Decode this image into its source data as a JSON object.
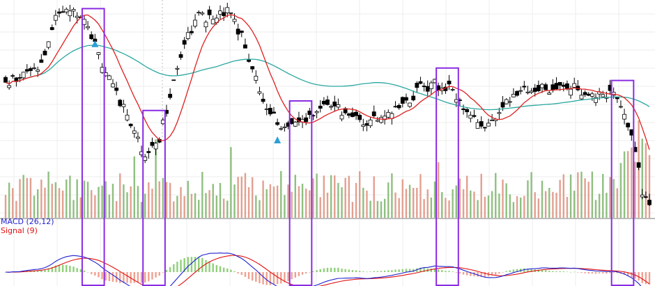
{
  "chart_data": [
    {
      "type": "candlestick",
      "panel": "price",
      "overlays": [
        {
          "kind": "moving-average",
          "color": "#e02020"
        },
        {
          "kind": "moving-average",
          "color": "#2aa7a0"
        }
      ],
      "markers": [
        {
          "kind": "signal-triangle",
          "bar": 25,
          "color": "#2b9fd6"
        },
        {
          "kind": "signal-triangle",
          "bar": 76,
          "color": "#2b9fd6"
        }
      ],
      "highlight_boxes": [
        {
          "from_bar": 22,
          "to_bar": 27,
          "color": "#8a2be2"
        },
        {
          "from_bar": 39,
          "to_bar": 44,
          "color": "#8a2be2"
        },
        {
          "from_bar": 80,
          "to_bar": 85,
          "color": "#8a2be2"
        },
        {
          "from_bar": 121,
          "to_bar": 126,
          "color": "#8a2be2"
        },
        {
          "from_bar": 170,
          "to_bar": 175,
          "color": "#8a2be2"
        }
      ],
      "grid": true,
      "up_color": "#ffffff",
      "down_color": "#000000"
    },
    {
      "type": "bar",
      "panel": "volume",
      "up_color": "#8fbf80",
      "down_color": "#e2a090"
    },
    {
      "type": "line",
      "panel": "macd",
      "series": [
        {
          "name": "MACD (26,12)",
          "color": "#1f1fcf"
        },
        {
          "name": "Signal (9)",
          "color": "#e01010"
        }
      ],
      "histogram": {
        "up_color": "#8fd07a",
        "down_color": "#f0a090"
      }
    }
  ]
}
